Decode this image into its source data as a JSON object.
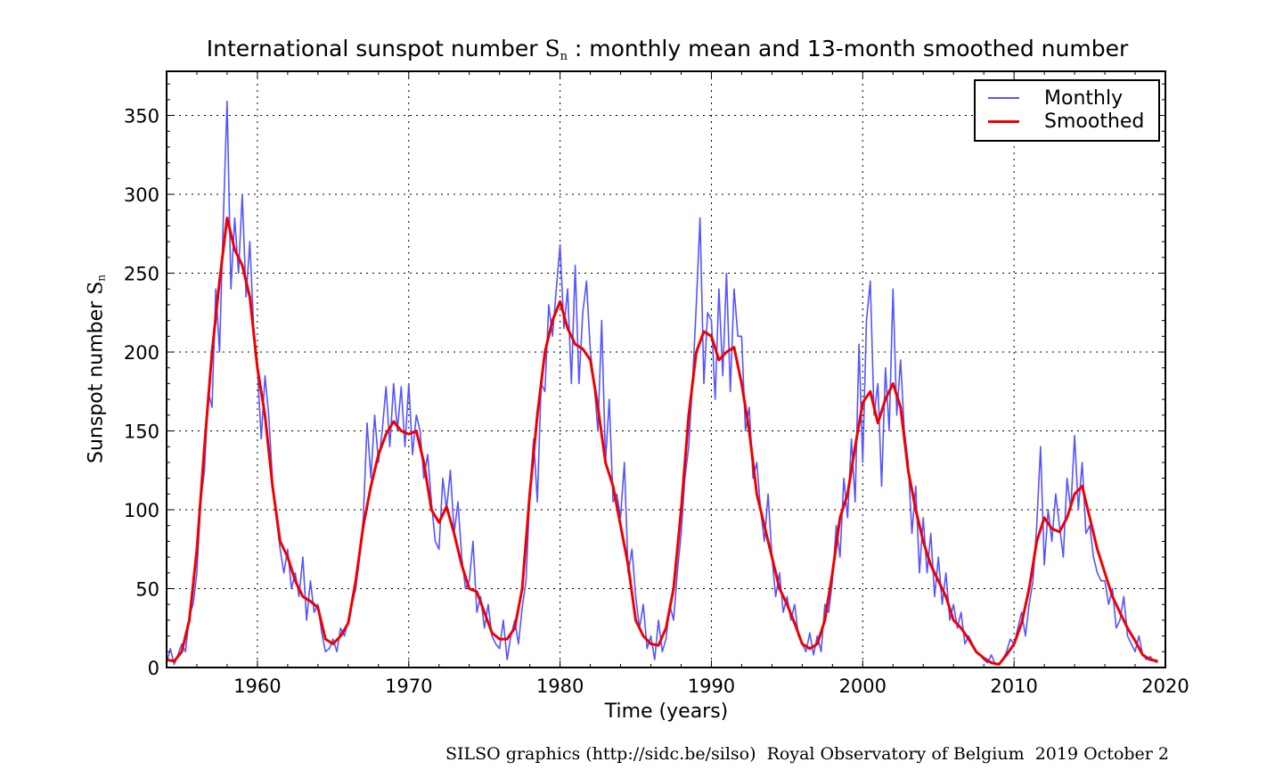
{
  "chart_data": {
    "type": "line",
    "title": {
      "prefix": "International sunspot number ",
      "symbol": "S",
      "subscript": "n",
      "suffix": " : monthly mean and 13-month smoothed number"
    },
    "xlabel": "Time (years)",
    "ylabel": {
      "prefix": "Sunspot number ",
      "symbol": "S",
      "subscript": "n"
    },
    "xlim": [
      1954,
      2020
    ],
    "ylim": [
      0,
      378
    ],
    "x_ticks": [
      1960,
      1970,
      1980,
      1990,
      2000,
      2010,
      2020
    ],
    "y_ticks": [
      0,
      50,
      100,
      150,
      200,
      250,
      300,
      350
    ],
    "grid": true,
    "legend": "top-right",
    "series": [
      {
        "name": "Monthly",
        "color": "#5555ff",
        "x_start": 1954.0,
        "x_step": 0.25,
        "values": [
          3,
          12,
          2,
          8,
          15,
          10,
          33,
          40,
          60,
          105,
          125,
          175,
          165,
          240,
          200,
          285,
          359,
          240,
          285,
          250,
          300,
          235,
          270,
          215,
          190,
          145,
          185,
          160,
          118,
          95,
          75,
          60,
          75,
          50,
          60,
          45,
          70,
          30,
          55,
          35,
          40,
          22,
          10,
          12,
          18,
          10,
          25,
          20,
          30,
          40,
          50,
          70,
          95,
          155,
          120,
          160,
          130,
          150,
          178,
          140,
          180,
          150,
          178,
          140,
          180,
          135,
          160,
          150,
          120,
          135,
          105,
          80,
          75,
          120,
          100,
          125,
          85,
          105,
          70,
          50,
          55,
          80,
          35,
          45,
          25,
          40,
          20,
          15,
          12,
          30,
          5,
          20,
          30,
          15,
          38,
          55,
          110,
          145,
          105,
          180,
          175,
          230,
          210,
          240,
          268,
          215,
          240,
          180,
          255,
          180,
          225,
          245,
          200,
          180,
          150,
          220,
          130,
          170,
          105,
          110,
          95,
          130,
          60,
          75,
          45,
          25,
          40,
          12,
          20,
          5,
          30,
          10,
          18,
          40,
          30,
          60,
          85,
          120,
          140,
          180,
          230,
          285,
          180,
          225,
          220,
          170,
          240,
          185,
          250,
          175,
          240,
          210,
          210,
          150,
          165,
          120,
          130,
          100,
          80,
          110,
          70,
          45,
          60,
          35,
          45,
          30,
          40,
          20,
          15,
          10,
          22,
          8,
          20,
          10,
          40,
          35,
          55,
          90,
          70,
          120,
          95,
          145,
          105,
          205,
          130,
          220,
          245,
          160,
          180,
          115,
          190,
          150,
          240,
          160,
          195,
          150,
          130,
          85,
          115,
          60,
          95,
          60,
          85,
          45,
          70,
          40,
          60,
          30,
          40,
          25,
          35,
          15,
          20,
          15,
          10,
          8,
          5,
          3,
          8,
          2,
          2,
          5,
          10,
          18,
          15,
          25,
          35,
          20,
          40,
          55,
          90,
          140,
          65,
          100,
          80,
          110,
          90,
          70,
          120,
          100,
          147,
          100,
          130,
          85,
          90,
          70,
          60,
          55,
          55,
          40,
          50,
          25,
          30,
          45,
          20,
          15,
          10,
          20,
          8,
          5,
          7,
          4,
          3
        ]
      },
      {
        "name": "Smoothed",
        "color": "#ee0000",
        "x_start": 1954.0,
        "x_step": 0.5,
        "values": [
          5,
          4,
          10,
          30,
          75,
          140,
          200,
          245,
          285,
          265,
          255,
          235,
          190,
          160,
          115,
          80,
          70,
          55,
          45,
          42,
          38,
          18,
          15,
          20,
          28,
          55,
          90,
          115,
          135,
          148,
          156,
          150,
          148,
          150,
          130,
          100,
          92,
          102,
          85,
          65,
          50,
          48,
          35,
          22,
          18,
          18,
          25,
          50,
          110,
          160,
          200,
          220,
          232,
          215,
          205,
          202,
          195,
          165,
          130,
          115,
          90,
          65,
          30,
          20,
          15,
          14,
          25,
          50,
          100,
          160,
          200,
          213,
          210,
          195,
          200,
          203,
          180,
          150,
          110,
          90,
          70,
          50,
          40,
          28,
          15,
          12,
          15,
          30,
          60,
          95,
          110,
          140,
          168,
          175,
          155,
          170,
          180,
          165,
          125,
          100,
          80,
          65,
          55,
          45,
          30,
          25,
          18,
          10,
          6,
          3,
          2,
          8,
          15,
          28,
          50,
          80,
          95,
          88,
          86,
          95,
          110,
          115,
          95,
          75,
          60,
          45,
          35,
          25,
          17,
          8,
          5,
          4
        ]
      }
    ]
  },
  "footer": "SILSO graphics (http://sidc.be/silso)  Royal Observatory of Belgium  2019 October 2"
}
